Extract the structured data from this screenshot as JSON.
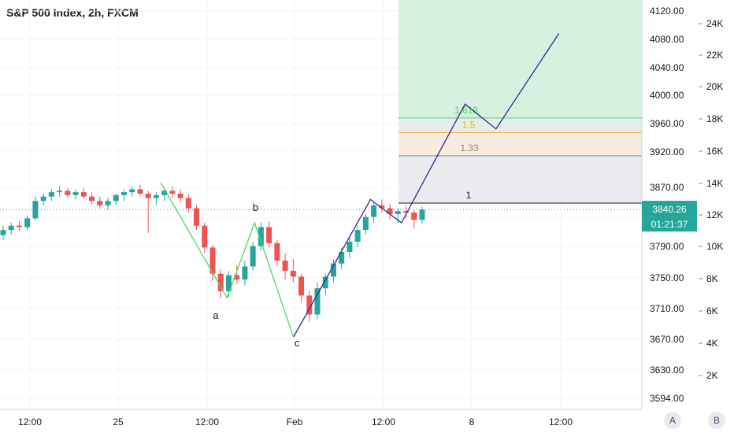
{
  "header": {
    "title": "S&P 500 Index, 2h, FXCM"
  },
  "colors": {
    "bull": "#26a69a",
    "bear": "#ef5350",
    "grid": "#f0f3fa",
    "wave_green": "#4cd964",
    "wave_navy": "#2a2e8a",
    "target_zone": "#d7f1e0",
    "price_badge": "#26a69a"
  },
  "price_axis": {
    "ticks": [
      "4120.00",
      "4080.00",
      "4040.00",
      "4000.00",
      "3960.00",
      "3920.00",
      "3870.00",
      "3830.00",
      "3790.00",
      "3750.00",
      "3710.00",
      "3670.00",
      "3630.00",
      "3594.00"
    ],
    "current_price": "3840.26",
    "countdown": "01:21:37"
  },
  "volume_axis": {
    "ticks": [
      "24K",
      "22K",
      "20K",
      "18K",
      "16K",
      "14K",
      "12K",
      "10K",
      "8K",
      "6K",
      "4K",
      "2K"
    ]
  },
  "time_axis": {
    "ticks": [
      "12:00",
      "25",
      "12:00",
      "Feb",
      "12:00",
      "8",
      "12:00"
    ]
  },
  "axis_buttons": {
    "auto": "A",
    "log": "B"
  },
  "chart_data": {
    "type": "line",
    "ylim": [
      3594,
      4130
    ],
    "wave_labels": [
      {
        "label": "a",
        "x_tick": 2.1,
        "price": 3690
      },
      {
        "label": "b",
        "x_tick": 2.55,
        "price": 3838
      },
      {
        "label": "c",
        "x_tick": 3.02,
        "price": 3652
      }
    ],
    "fib_levels": [
      {
        "label": "1.618",
        "price": 3966,
        "color": "#4cd964"
      },
      {
        "label": "1.5",
        "price": 3946,
        "color": "#f5a623"
      },
      {
        "label": "1.33",
        "price": 3914,
        "color": "#888888"
      },
      {
        "label": "1",
        "price": 3849,
        "color": "#131722"
      }
    ],
    "green_wave": [
      [
        1.48,
        3877
      ],
      [
        2.23,
        3719
      ],
      [
        2.54,
        3822
      ],
      [
        2.98,
        3665
      ]
    ],
    "navy_projection": [
      [
        2.98,
        3665
      ],
      [
        3.85,
        3854
      ],
      [
        4.2,
        3822
      ],
      [
        4.92,
        3985
      ],
      [
        5.27,
        3951
      ],
      [
        5.98,
        4082
      ]
    ],
    "candles_ohlc": [
      [
        3805,
        3818,
        3798,
        3812
      ],
      [
        3812,
        3822,
        3806,
        3818
      ],
      [
        3818,
        3824,
        3810,
        3816
      ],
      [
        3816,
        3832,
        3812,
        3828
      ],
      [
        3828,
        3858,
        3825,
        3852
      ],
      [
        3852,
        3862,
        3846,
        3858
      ],
      [
        3858,
        3868,
        3852,
        3864
      ],
      [
        3864,
        3872,
        3858,
        3866
      ],
      [
        3866,
        3870,
        3856,
        3860
      ],
      [
        3860,
        3868,
        3854,
        3864
      ],
      [
        3864,
        3870,
        3855,
        3858
      ],
      [
        3858,
        3864,
        3848,
        3852
      ],
      [
        3852,
        3858,
        3842,
        3846
      ],
      [
        3846,
        3856,
        3840,
        3852
      ],
      [
        3852,
        3862,
        3846,
        3860
      ],
      [
        3860,
        3868,
        3852,
        3864
      ],
      [
        3864,
        3872,
        3858,
        3868
      ],
      [
        3868,
        3874,
        3858,
        3862
      ],
      [
        3862,
        3866,
        3808,
        3856
      ],
      [
        3856,
        3864,
        3846,
        3860
      ],
      [
        3860,
        3868,
        3852,
        3866
      ],
      [
        3866,
        3872,
        3856,
        3862
      ],
      [
        3862,
        3868,
        3850,
        3856
      ],
      [
        3856,
        3862,
        3836,
        3842
      ],
      [
        3842,
        3846,
        3812,
        3818
      ],
      [
        3818,
        3822,
        3780,
        3788
      ],
      [
        3788,
        3792,
        3742,
        3752
      ],
      [
        3752,
        3758,
        3718,
        3728
      ],
      [
        3728,
        3756,
        3720,
        3750
      ],
      [
        3750,
        3764,
        3738,
        3744
      ],
      [
        3744,
        3770,
        3736,
        3762
      ],
      [
        3762,
        3796,
        3756,
        3790
      ],
      [
        3790,
        3822,
        3784,
        3816
      ],
      [
        3816,
        3824,
        3788,
        3794
      ],
      [
        3794,
        3798,
        3762,
        3770
      ],
      [
        3770,
        3780,
        3744,
        3756
      ],
      [
        3756,
        3772,
        3740,
        3748
      ],
      [
        3748,
        3752,
        3712,
        3722
      ],
      [
        3722,
        3728,
        3686,
        3696
      ],
      [
        3696,
        3740,
        3690,
        3732
      ],
      [
        3732,
        3752,
        3722,
        3748
      ],
      [
        3748,
        3772,
        3740,
        3766
      ],
      [
        3766,
        3788,
        3758,
        3782
      ],
      [
        3782,
        3802,
        3774,
        3796
      ],
      [
        3796,
        3818,
        3788,
        3812
      ],
      [
        3812,
        3834,
        3806,
        3830
      ],
      [
        3830,
        3850,
        3822,
        3846
      ],
      [
        3846,
        3854,
        3836,
        3842
      ],
      [
        3842,
        3848,
        3826,
        3834
      ],
      [
        3834,
        3842,
        3822,
        3838
      ],
      [
        3838,
        3846,
        3828,
        3836
      ],
      [
        3836,
        3840,
        3814,
        3826
      ],
      [
        3826,
        3844,
        3820,
        3840
      ]
    ]
  }
}
